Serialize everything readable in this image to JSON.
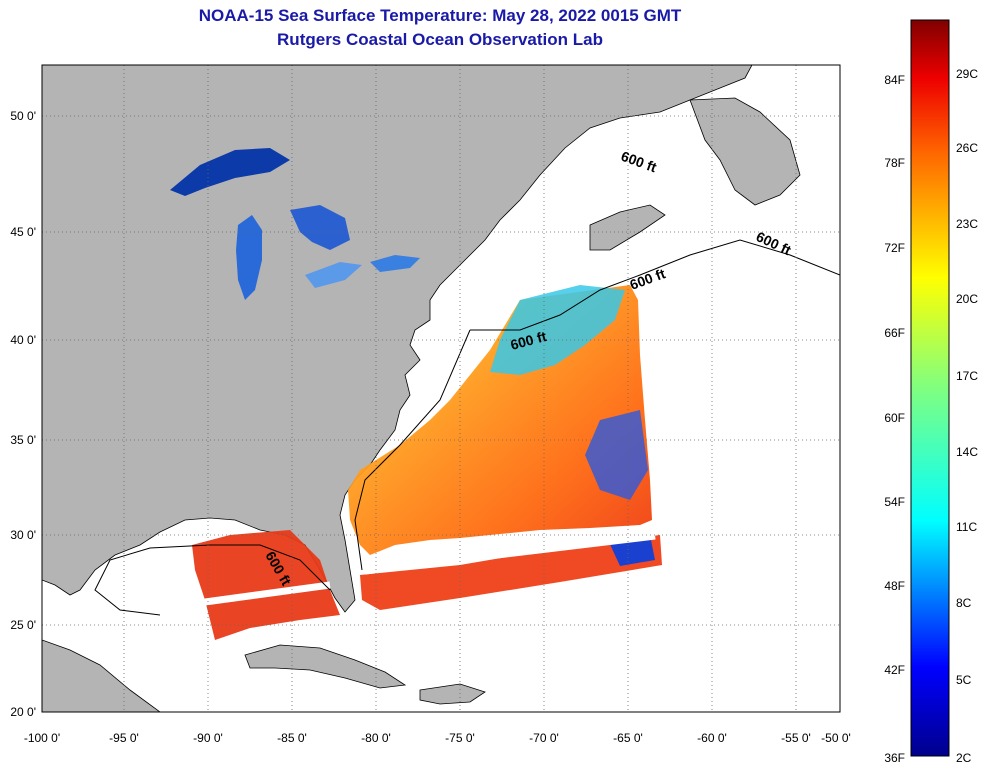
{
  "title": "NOAA-15 Sea Surface Temperature:  May 28, 2022 0015 GMT",
  "subtitle": "Rutgers Coastal Ocean Observation Lab",
  "map": {
    "lat_ticks": [
      "50 0'",
      "45 0'",
      "40 0'",
      "35 0'",
      "30 0'",
      "25 0'",
      "20 0'"
    ],
    "lon_ticks": [
      "-100 0'",
      "-95 0'",
      "-90 0'",
      "-85 0'",
      "-80 0'",
      "-75 0'",
      "-70 0'",
      "-65 0'",
      "-60 0'",
      "-55 0'",
      "-50 0'"
    ],
    "contour_label": "600 ft",
    "land_color": "#b4b4b4"
  },
  "colorbar": {
    "fahrenheit": [
      "84F",
      "78F",
      "72F",
      "66F",
      "60F",
      "54F",
      "48F",
      "42F",
      "36F"
    ],
    "celsius": [
      "29C",
      "26C",
      "23C",
      "20C",
      "17C",
      "14C",
      "11C",
      "8C",
      "5C",
      "2C"
    ]
  }
}
